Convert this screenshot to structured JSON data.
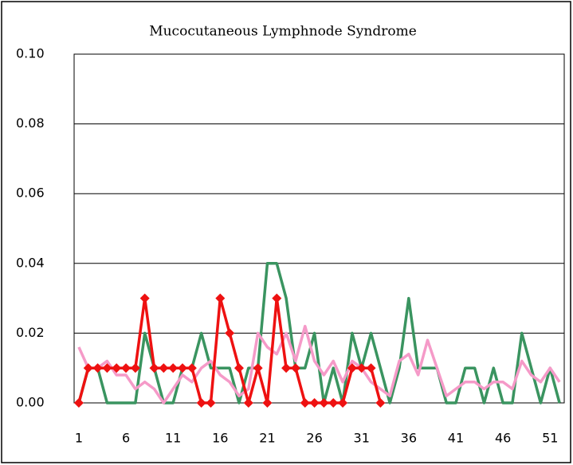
{
  "chart_data": {
    "type": "line",
    "title": "Mucocutaneous Lymphnode Syndrome",
    "x": [
      1,
      2,
      3,
      4,
      5,
      6,
      7,
      8,
      9,
      10,
      11,
      12,
      13,
      14,
      15,
      16,
      17,
      18,
      19,
      20,
      21,
      22,
      23,
      24,
      25,
      26,
      27,
      28,
      29,
      30,
      31,
      32,
      33,
      34,
      35,
      36,
      37,
      38,
      39,
      40,
      41,
      42,
      43,
      44,
      45,
      46,
      47,
      48,
      49,
      50,
      51,
      52
    ],
    "xlim": [
      0.5,
      52.5
    ],
    "xticks": [
      1,
      6,
      11,
      16,
      21,
      26,
      31,
      36,
      41,
      46,
      51
    ],
    "ylim": [
      0,
      0.1
    ],
    "yticks": [
      {
        "value": 0,
        "label": "0.00"
      },
      0.02,
      0.04,
      0.06,
      0.08,
      {
        "value": 0.1,
        "label": "0.10"
      }
    ],
    "grid": true,
    "series": [
      {
        "color": "#3a9460",
        "marker": false,
        "values": [
          0,
          0.01,
          0.01,
          0,
          0,
          0,
          0,
          0.02,
          0.01,
          0,
          0,
          0.01,
          0.01,
          0.02,
          0.01,
          0.01,
          0.01,
          0,
          0.01,
          0.01,
          0.04,
          0.04,
          0.03,
          0.01,
          0.01,
          0.02,
          0,
          0.01,
          0,
          0.02,
          0.01,
          0.02,
          0.01,
          0,
          0.01,
          0.03,
          0.01,
          0.01,
          0.01,
          0,
          0,
          0.01,
          0.01,
          0,
          0.01,
          0,
          0,
          0.02,
          0.01,
          0,
          0.01,
          0
        ]
      },
      {
        "color": "#f59ac8",
        "marker": false,
        "values": [
          0.016,
          0.01,
          0.01,
          0.012,
          0.008,
          0.008,
          0.004,
          0.006,
          0.004,
          0,
          0.004,
          0.008,
          0.006,
          0.01,
          0.012,
          0.008,
          0.006,
          0.002,
          0.004,
          0.02,
          0.016,
          0.014,
          0.02,
          0.012,
          0.022,
          0.012,
          0.008,
          0.012,
          0.006,
          0.012,
          0.01,
          0.006,
          0.004,
          0.002,
          0.012,
          0.014,
          0.008,
          0.018,
          0.01,
          0.002,
          0.004,
          0.006,
          0.006,
          0.004,
          0.006,
          0.006,
          0.004,
          0.012,
          0.008,
          0.006,
          0.01,
          0.006
        ]
      },
      {
        "color": "#ee1111",
        "marker": true,
        "values": [
          0,
          0.01,
          0.01,
          0.01,
          0.01,
          0.01,
          0.01,
          0.03,
          0.01,
          0.01,
          0.01,
          0.01,
          0.01,
          0,
          0,
          0.03,
          0.02,
          0.01,
          0,
          0.01,
          0,
          0.03,
          0.01,
          0.01,
          0,
          0,
          0,
          0,
          0,
          0.01,
          0.01,
          0.01,
          0,
          null,
          null,
          null,
          null,
          null,
          null,
          null,
          null,
          null,
          null,
          null,
          null,
          null,
          null,
          null,
          null,
          null,
          null,
          null
        ]
      }
    ]
  }
}
